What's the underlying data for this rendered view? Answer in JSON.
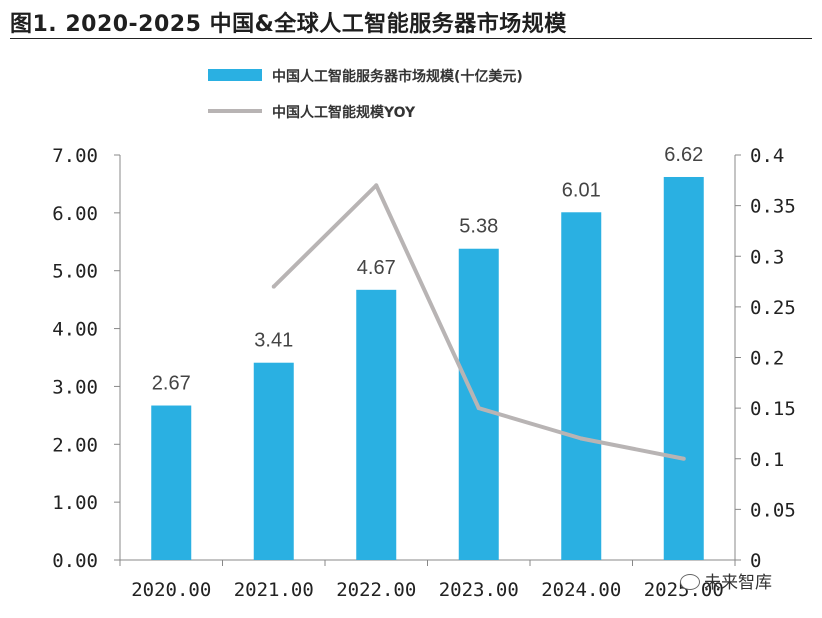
{
  "title": "图1. 2020-2025 中国&全球人工智能服务器市场规模",
  "watermark": "未来智库",
  "colors": {
    "bar": "#2ab0e2",
    "line": "#b8b4b4",
    "axis": "#888888"
  },
  "chart_data": {
    "type": "bar",
    "categories": [
      "2020.00",
      "2021.00",
      "2022.00",
      "2023.00",
      "2024.00",
      "2025.00"
    ],
    "series": [
      {
        "name": "中国人工智能服务器市场规模(十亿美元)",
        "type": "bar",
        "axis": "left",
        "values": [
          2.67,
          3.41,
          4.67,
          5.38,
          6.01,
          6.62
        ]
      },
      {
        "name": "中国人工智能规模YOY",
        "type": "line",
        "axis": "right",
        "values": [
          null,
          0.27,
          0.37,
          0.15,
          0.12,
          0.1
        ]
      }
    ],
    "data_labels": [
      "2.67",
      "3.41",
      "4.67",
      "5.38",
      "6.01",
      "6.62"
    ],
    "y_left": {
      "ylim": [
        0,
        7
      ],
      "ticks": [
        "0.00",
        "1.00",
        "2.00",
        "3.00",
        "4.00",
        "5.00",
        "6.00",
        "7.00"
      ]
    },
    "y_right": {
      "ylim": [
        0,
        0.4
      ],
      "ticks": [
        "0",
        "0.05",
        "0.1",
        "0.15",
        "0.2",
        "0.25",
        "0.3",
        "0.35",
        "0.4"
      ]
    },
    "legend": [
      "中国人工智能服务器市场规模(十亿美元)",
      "中国人工智能规模YOY"
    ],
    "legend_position": "top"
  }
}
